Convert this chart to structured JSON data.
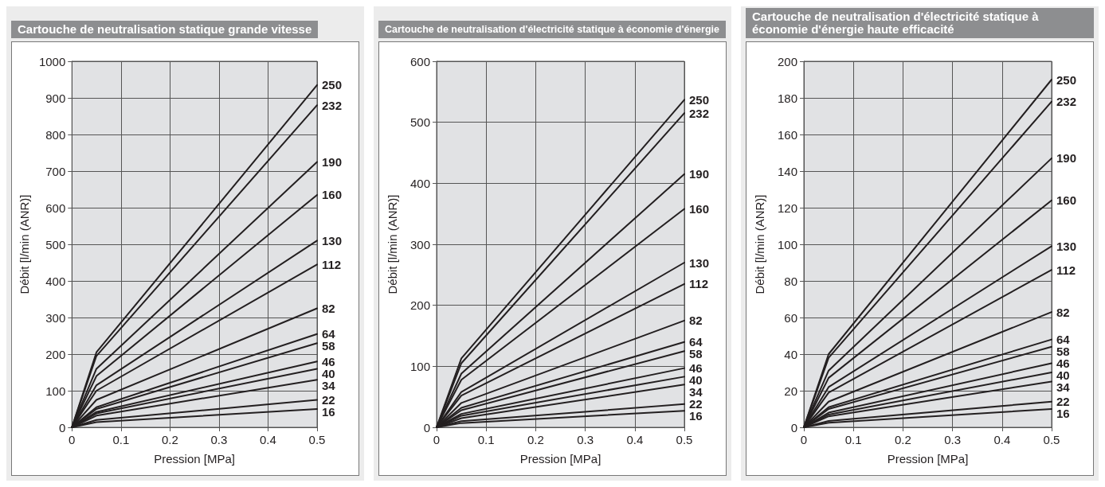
{
  "chart_data": [
    {
      "type": "line",
      "title": "Cartouche de neutralisation statique grande vitesse",
      "xlabel": "Pression [MPa]",
      "ylabel": "Débit [l/min (ANR)]",
      "x": [
        0,
        0.05,
        0.5
      ],
      "xlim": [
        0,
        0.5
      ],
      "xticks": [
        0,
        0.1,
        0.2,
        0.3,
        0.4,
        0.5
      ],
      "ylim": [
        0,
        1000
      ],
      "yticks": [
        0,
        100,
        200,
        300,
        400,
        500,
        600,
        700,
        800,
        900,
        1000
      ],
      "grid": true,
      "marker": "none",
      "line_style": "solid",
      "series": [
        {
          "name": "250",
          "color": "#231f20",
          "values": [
            0,
            205,
            935
          ]
        },
        {
          "name": "232",
          "color": "#231f20",
          "values": [
            0,
            195,
            880
          ]
        },
        {
          "name": "190",
          "color": "#231f20",
          "values": [
            0,
            160,
            725
          ]
        },
        {
          "name": "160",
          "color": "#231f20",
          "values": [
            0,
            140,
            635
          ]
        },
        {
          "name": "130",
          "color": "#231f20",
          "values": [
            0,
            115,
            510
          ]
        },
        {
          "name": "112",
          "color": "#231f20",
          "values": [
            0,
            100,
            445
          ]
        },
        {
          "name": "82",
          "color": "#231f20",
          "values": [
            0,
            75,
            325
          ]
        },
        {
          "name": "64",
          "color": "#231f20",
          "values": [
            0,
            55,
            255
          ]
        },
        {
          "name": "58",
          "color": "#231f20",
          "values": [
            0,
            50,
            230
          ]
        },
        {
          "name": "46",
          "color": "#231f20",
          "values": [
            0,
            42,
            180
          ]
        },
        {
          "name": "40",
          "color": "#231f20",
          "values": [
            0,
            38,
            160
          ]
        },
        {
          "name": "34",
          "color": "#231f20",
          "values": [
            0,
            32,
            130
          ]
        },
        {
          "name": "22",
          "color": "#231f20",
          "values": [
            0,
            20,
            75
          ]
        },
        {
          "name": "16",
          "color": "#231f20",
          "values": [
            0,
            14,
            50
          ]
        }
      ]
    },
    {
      "type": "line",
      "title": "Cartouche de neutralisation d'électricité statique à économie d'énergie",
      "xlabel": "Pression [MPa]",
      "ylabel": "Débit [l/min (ANR)]",
      "x": [
        0,
        0.05,
        0.5
      ],
      "xlim": [
        0,
        0.5
      ],
      "xticks": [
        0,
        0.1,
        0.2,
        0.3,
        0.4,
        0.5
      ],
      "ylim": [
        0,
        600
      ],
      "yticks": [
        0,
        100,
        200,
        300,
        400,
        500,
        600
      ],
      "grid": true,
      "marker": "none",
      "line_style": "solid",
      "series": [
        {
          "name": "250",
          "color": "#231f20",
          "values": [
            0,
            113,
            537
          ]
        },
        {
          "name": "232",
          "color": "#231f20",
          "values": [
            0,
            105,
            515
          ]
        },
        {
          "name": "190",
          "color": "#231f20",
          "values": [
            0,
            88,
            415
          ]
        },
        {
          "name": "160",
          "color": "#231f20",
          "values": [
            0,
            78,
            358
          ]
        },
        {
          "name": "130",
          "color": "#231f20",
          "values": [
            0,
            58,
            270
          ]
        },
        {
          "name": "112",
          "color": "#231f20",
          "values": [
            0,
            52,
            235
          ]
        },
        {
          "name": "82",
          "color": "#231f20",
          "values": [
            0,
            40,
            175
          ]
        },
        {
          "name": "64",
          "color": "#231f20",
          "values": [
            0,
            32,
            140
          ]
        },
        {
          "name": "58",
          "color": "#231f20",
          "values": [
            0,
            28,
            125
          ]
        },
        {
          "name": "46",
          "color": "#231f20",
          "values": [
            0,
            22,
            97
          ]
        },
        {
          "name": "40",
          "color": "#231f20",
          "values": [
            0,
            19,
            83
          ]
        },
        {
          "name": "34",
          "color": "#231f20",
          "values": [
            0,
            15,
            70
          ]
        },
        {
          "name": "22",
          "color": "#231f20",
          "values": [
            0,
            10,
            38
          ]
        },
        {
          "name": "16",
          "color": "#231f20",
          "values": [
            0,
            7,
            27
          ]
        }
      ]
    },
    {
      "type": "line",
      "title": "Cartouche de neutralisation d'électricité statique à économie d'énergie haute efficacité",
      "xlabel": "Pression [MPa]",
      "ylabel": "Débit [l/min (ANR)]",
      "x": [
        0,
        0.05,
        0.5
      ],
      "xlim": [
        0,
        0.5
      ],
      "xticks": [
        0,
        0.1,
        0.2,
        0.3,
        0.4,
        0.5
      ],
      "ylim": [
        0,
        200
      ],
      "yticks": [
        0,
        20,
        40,
        60,
        80,
        100,
        120,
        140,
        160,
        180,
        200
      ],
      "grid": true,
      "marker": "none",
      "line_style": "solid",
      "series": [
        {
          "name": "250",
          "color": "#231f20",
          "values": [
            0,
            40,
            190
          ]
        },
        {
          "name": "232",
          "color": "#231f20",
          "values": [
            0,
            38,
            178
          ]
        },
        {
          "name": "190",
          "color": "#231f20",
          "values": [
            0,
            31,
            147
          ]
        },
        {
          "name": "160",
          "color": "#231f20",
          "values": [
            0,
            27,
            124
          ]
        },
        {
          "name": "130",
          "color": "#231f20",
          "values": [
            0,
            22,
            99
          ]
        },
        {
          "name": "112",
          "color": "#231f20",
          "values": [
            0,
            19,
            86
          ]
        },
        {
          "name": "82",
          "color": "#231f20",
          "values": [
            0,
            14,
            63
          ]
        },
        {
          "name": "64",
          "color": "#231f20",
          "values": [
            0,
            11,
            48
          ]
        },
        {
          "name": "58",
          "color": "#231f20",
          "values": [
            0,
            10,
            44
          ]
        },
        {
          "name": "46",
          "color": "#231f20",
          "values": [
            0,
            8,
            35
          ]
        },
        {
          "name": "40",
          "color": "#231f20",
          "values": [
            0,
            7,
            30
          ]
        },
        {
          "name": "34",
          "color": "#231f20",
          "values": [
            0,
            6,
            25
          ]
        },
        {
          "name": "22",
          "color": "#231f20",
          "values": [
            0,
            3.5,
            14
          ]
        },
        {
          "name": "16",
          "color": "#231f20",
          "values": [
            0,
            2.5,
            10
          ]
        }
      ]
    }
  ]
}
